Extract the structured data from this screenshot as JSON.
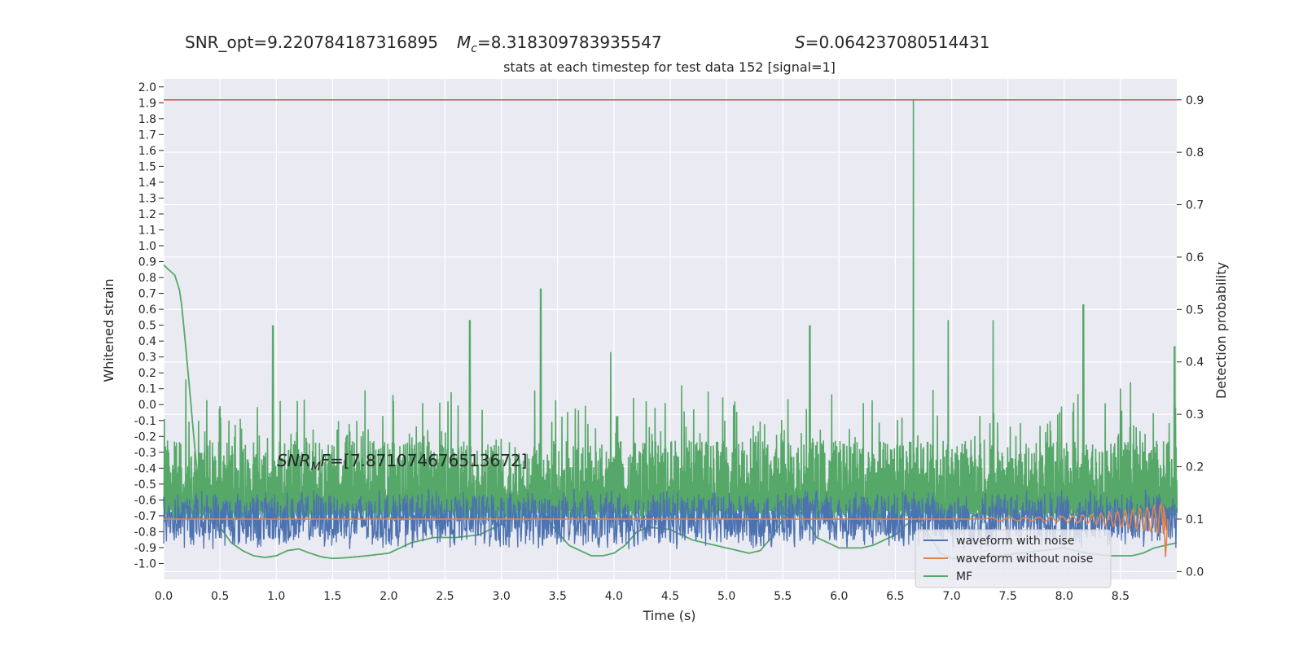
{
  "header": {
    "snr_opt": "SNR_opt=9.220784187316895",
    "mc_sym": "M",
    "mc_sub": "c",
    "mc_value": "=8.318309783935547",
    "s_sym": "S",
    "s_value": "=0.064237080514431"
  },
  "chart_data": {
    "type": "line",
    "title": "stats at each timestep for test data 152 [signal=1]",
    "xlabel": "Time (s)",
    "ylabel_left": "Whitened strain",
    "ylabel_right": "Detection probability",
    "xlim": [
      0.0,
      9.0
    ],
    "x_ticks": [
      "0.0",
      "0.5",
      "1.0",
      "1.5",
      "2.0",
      "2.5",
      "3.0",
      "3.5",
      "4.0",
      "4.5",
      "5.0",
      "5.5",
      "6.0",
      "6.5",
      "7.0",
      "7.5",
      "8.0",
      "8.5"
    ],
    "ylim_right": [
      -0.015,
      0.94
    ],
    "right_ticks": [
      "0.0",
      "0.1",
      "0.2",
      "0.3",
      "0.4",
      "0.5",
      "0.6",
      "0.7",
      "0.8",
      "0.9"
    ],
    "ylim_left": [
      -1.1,
      2.05
    ],
    "left_ticks": [
      "-1.0",
      "-0.9",
      "-0.8",
      "-0.7",
      "-0.6",
      "-0.5",
      "-0.4",
      "-0.3",
      "-0.2",
      "-0.1",
      "0.0",
      "0.1",
      "0.2",
      "0.3",
      "0.4",
      "0.5",
      "0.6",
      "0.7",
      "0.8",
      "0.9",
      "1.0",
      "1.1",
      "1.2",
      "1.3",
      "1.4",
      "1.5",
      "1.6",
      "1.7",
      "1.8",
      "1.9",
      "2.0"
    ],
    "threshold": 0.9,
    "grid": true,
    "legend_position": "lower-right",
    "annotation": {
      "sym": "SNR",
      "sub": "M",
      "sym2": "F",
      "value": "=[7.871074676513672]"
    },
    "colors": {
      "waveform_with_noise": "#4c72b0",
      "waveform_without_noise": "#dd8452",
      "mf": "#55a868",
      "threshold": "#c44e52",
      "plot_bg": "#eaeaf2",
      "grid": "#ffffff"
    },
    "series": [
      {
        "name": "waveform with noise",
        "axis": "right",
        "description_values": {
          "center": 0.1,
          "amplitude": 0.06
        }
      },
      {
        "name": "waveform without noise",
        "axis": "right",
        "description_values": {
          "center": 0.1,
          "start": 7.3,
          "end": 8.9
        }
      },
      {
        "name": "MF",
        "axis": "right",
        "envelope_x": [
          0.0,
          0.1,
          0.15,
          0.2,
          0.25,
          0.3,
          0.35,
          0.4,
          0.5,
          0.6,
          0.7,
          0.8,
          0.9,
          1.0,
          1.1,
          1.2,
          1.3,
          1.4,
          1.5,
          1.6,
          1.8,
          2.0,
          2.2,
          2.4,
          2.6,
          2.8,
          3.0,
          3.1,
          3.2,
          3.3,
          3.4,
          3.6,
          3.8,
          3.9,
          4.0,
          4.1,
          4.2,
          4.3,
          4.5,
          4.7,
          4.9,
          5.1,
          5.2,
          5.3,
          5.4,
          5.5,
          5.6,
          5.7,
          5.8,
          6.0,
          6.2,
          6.3,
          6.5,
          6.6,
          6.7,
          6.8,
          6.9,
          7.0,
          7.2,
          7.4,
          7.6,
          7.8,
          8.0,
          8.2,
          8.4,
          8.6,
          8.7,
          8.8,
          8.9,
          9.0
        ],
        "envelope_y": [
          0.585,
          0.565,
          0.53,
          0.42,
          0.3,
          0.18,
          0.13,
          0.1,
          0.085,
          0.055,
          0.04,
          0.03,
          0.027,
          0.03,
          0.04,
          0.043,
          0.035,
          0.028,
          0.025,
          0.026,
          0.03,
          0.035,
          0.055,
          0.065,
          0.065,
          0.07,
          0.09,
          0.11,
          0.125,
          0.13,
          0.1,
          0.05,
          0.03,
          0.03,
          0.035,
          0.05,
          0.075,
          0.085,
          0.08,
          0.06,
          0.05,
          0.04,
          0.035,
          0.04,
          0.065,
          0.1,
          0.12,
          0.105,
          0.065,
          0.045,
          0.045,
          0.05,
          0.07,
          0.09,
          0.1,
          0.07,
          0.035,
          0.025,
          0.025,
          0.03,
          0.035,
          0.04,
          0.045,
          0.035,
          0.03,
          0.03,
          0.035,
          0.045,
          0.05,
          0.055
        ],
        "noise_peaks": [
          [
            6.66,
            0.9
          ],
          [
            3.35,
            0.54
          ],
          [
            8.17,
            0.51
          ],
          [
            7.37,
            0.48
          ],
          [
            6.97,
            0.48
          ],
          [
            2.72,
            0.48
          ],
          [
            0.97,
            0.47
          ],
          [
            5.74,
            0.47
          ],
          [
            8.98,
            0.43
          ]
        ]
      }
    ]
  }
}
